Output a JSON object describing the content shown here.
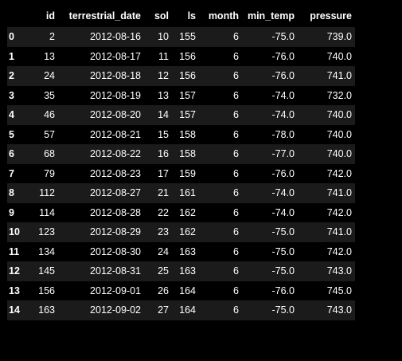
{
  "table": {
    "columns": [
      "",
      "id",
      "terrestrial_date",
      "sol",
      "ls",
      "month",
      "min_temp",
      "pressure"
    ],
    "rows": [
      [
        "0",
        "2",
        "2012-08-16",
        "10",
        "155",
        "6",
        "-75.0",
        "739.0"
      ],
      [
        "1",
        "13",
        "2012-08-17",
        "11",
        "156",
        "6",
        "-76.0",
        "740.0"
      ],
      [
        "2",
        "24",
        "2012-08-18",
        "12",
        "156",
        "6",
        "-76.0",
        "741.0"
      ],
      [
        "3",
        "35",
        "2012-08-19",
        "13",
        "157",
        "6",
        "-74.0",
        "732.0"
      ],
      [
        "4",
        "46",
        "2012-08-20",
        "14",
        "157",
        "6",
        "-74.0",
        "740.0"
      ],
      [
        "5",
        "57",
        "2012-08-21",
        "15",
        "158",
        "6",
        "-78.0",
        "740.0"
      ],
      [
        "6",
        "68",
        "2012-08-22",
        "16",
        "158",
        "6",
        "-77.0",
        "740.0"
      ],
      [
        "7",
        "79",
        "2012-08-23",
        "17",
        "159",
        "6",
        "-76.0",
        "742.0"
      ],
      [
        "8",
        "112",
        "2012-08-27",
        "21",
        "161",
        "6",
        "-74.0",
        "741.0"
      ],
      [
        "9",
        "114",
        "2012-08-28",
        "22",
        "162",
        "6",
        "-74.0",
        "742.0"
      ],
      [
        "10",
        "123",
        "2012-08-29",
        "23",
        "162",
        "6",
        "-75.0",
        "741.0"
      ],
      [
        "11",
        "134",
        "2012-08-30",
        "24",
        "163",
        "6",
        "-75.0",
        "742.0"
      ],
      [
        "12",
        "145",
        "2012-08-31",
        "25",
        "163",
        "6",
        "-75.0",
        "743.0"
      ],
      [
        "13",
        "156",
        "2012-09-01",
        "26",
        "164",
        "6",
        "-76.0",
        "745.0"
      ],
      [
        "14",
        "163",
        "2012-09-02",
        "27",
        "164",
        "6",
        "-75.0",
        "743.0"
      ]
    ]
  },
  "colors": {
    "background": "#000000",
    "stripe": "#1b1b1b",
    "text": "#ffffff"
  }
}
